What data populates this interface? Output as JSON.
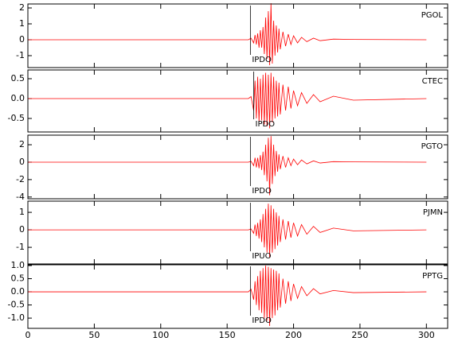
{
  "chart_data": [
    {
      "type": "line",
      "x": [
        0,
        166,
        168,
        170,
        171,
        172,
        173,
        174,
        175,
        176,
        177,
        178,
        179,
        180,
        181,
        182,
        183,
        184,
        185,
        186,
        187,
        188,
        189,
        190,
        192,
        194,
        196,
        198,
        200,
        203,
        206,
        210,
        215,
        220,
        230,
        245,
        300
      ],
      "series": [
        {
          "name": "PGOL",
          "color": "#ff0000",
          "values": [
            0,
            0,
            0.1,
            -0.2,
            0.3,
            -0.3,
            0.4,
            -0.5,
            0.6,
            -0.5,
            0.8,
            -0.9,
            1.4,
            -1.2,
            1.8,
            -1.6,
            2.3,
            -1.5,
            1.2,
            -1.0,
            0.9,
            -0.8,
            0.7,
            -0.6,
            0.5,
            -0.4,
            0.35,
            -0.3,
            0.25,
            -0.2,
            0.15,
            -0.12,
            0.1,
            -0.06,
            0.04,
            0.02,
            0
          ]
        }
      ],
      "annotations": [
        {
          "text": "IPDO",
          "x": 167.5
        }
      ],
      "xlim": [
        0,
        316
      ],
      "ylim": [
        -1.75,
        2.25
      ],
      "yticks": [
        -1,
        0,
        1,
        2
      ]
    },
    {
      "type": "line",
      "x": [
        0,
        166,
        168,
        170,
        171,
        172,
        173,
        174,
        175,
        176,
        177,
        178,
        179,
        180,
        181,
        182,
        183,
        184,
        185,
        186,
        187,
        188,
        189,
        190,
        192,
        194,
        196,
        198,
        200,
        203,
        206,
        210,
        215,
        220,
        230,
        245,
        300
      ],
      "series": [
        {
          "name": "CTEC",
          "color": "#ff0000",
          "values": [
            0,
            0,
            0.05,
            -0.3,
            0.45,
            -0.5,
            0.55,
            -0.6,
            0.5,
            -0.55,
            0.6,
            -0.65,
            0.65,
            -0.7,
            0.6,
            -0.75,
            0.65,
            -0.6,
            0.55,
            -0.5,
            0.45,
            -0.45,
            0.4,
            -0.4,
            0.35,
            -0.3,
            0.3,
            -0.25,
            0.2,
            -0.18,
            0.15,
            -0.12,
            0.1,
            -0.08,
            0.06,
            -0.04,
            0
          ]
        }
      ],
      "annotations": [
        {
          "text": "IPDO",
          "x": 170
        }
      ],
      "xlim": [
        0,
        316
      ],
      "ylim": [
        -0.84,
        0.72
      ],
      "yticks": [
        -0.5,
        {
          "value": 0,
          "label": "0.0"
        },
        0.5
      ]
    },
    {
      "type": "line",
      "x": [
        0,
        166,
        168,
        170,
        171,
        172,
        173,
        174,
        175,
        176,
        177,
        178,
        179,
        180,
        181,
        182,
        183,
        184,
        185,
        186,
        187,
        188,
        189,
        190,
        192,
        194,
        196,
        198,
        200,
        203,
        206,
        210,
        215,
        220,
        230,
        245,
        300
      ],
      "series": [
        {
          "name": "PGTO",
          "color": "#ff0000",
          "values": [
            0,
            0,
            0.1,
            -0.4,
            0.5,
            -0.6,
            0.5,
            -0.7,
            0.8,
            -0.9,
            1.2,
            -1.5,
            2.0,
            -2.2,
            2.8,
            -3.8,
            3.0,
            -2.5,
            2.0,
            -1.6,
            1.3,
            -1.1,
            0.9,
            -0.8,
            0.7,
            -0.6,
            0.5,
            -0.4,
            0.35,
            -0.3,
            0.25,
            -0.2,
            0.15,
            -0.1,
            0.06,
            0.03,
            0
          ]
        }
      ],
      "annotations": [
        {
          "text": "IPDO",
          "x": 167.5
        }
      ],
      "xlim": [
        0,
        316
      ],
      "ylim": [
        -4.2,
        3.1
      ],
      "yticks": [
        -4,
        -2,
        0,
        2
      ]
    },
    {
      "type": "line",
      "x": [
        0,
        166,
        168,
        170,
        171,
        172,
        173,
        174,
        175,
        176,
        177,
        178,
        179,
        180,
        181,
        182,
        183,
        184,
        185,
        186,
        187,
        188,
        189,
        190,
        192,
        194,
        196,
        198,
        200,
        203,
        206,
        210,
        215,
        220,
        230,
        245,
        300
      ],
      "series": [
        {
          "name": "PJMN",
          "color": "#ff0000",
          "values": [
            0,
            0,
            0.05,
            -0.2,
            0.3,
            -0.35,
            0.4,
            -0.5,
            0.6,
            -0.7,
            0.9,
            -1.0,
            1.2,
            -1.3,
            1.5,
            -1.6,
            1.4,
            -1.3,
            1.2,
            -1.1,
            1.0,
            -0.9,
            0.8,
            -0.7,
            0.6,
            -0.55,
            0.5,
            -0.45,
            0.4,
            -0.35,
            0.3,
            -0.25,
            0.2,
            -0.15,
            0.1,
            -0.06,
            0
          ]
        }
      ],
      "annotations": [
        {
          "text": "IPUO",
          "x": 167.5
        }
      ],
      "xlim": [
        0,
        316
      ],
      "ylim": [
        -1.95,
        1.64
      ],
      "yticks": [
        -1,
        0,
        1
      ]
    },
    {
      "type": "line",
      "x": [
        0,
        166,
        168,
        170,
        171,
        172,
        173,
        174,
        175,
        176,
        177,
        178,
        179,
        180,
        181,
        182,
        183,
        184,
        185,
        186,
        187,
        188,
        189,
        190,
        192,
        194,
        196,
        198,
        200,
        203,
        206,
        210,
        215,
        220,
        230,
        245,
        300
      ],
      "series": [
        {
          "name": "PPTG",
          "color": "#ff0000",
          "values": [
            0,
            0,
            0.1,
            -0.3,
            0.4,
            -0.5,
            0.6,
            -0.7,
            0.8,
            -0.8,
            0.9,
            -1.0,
            1.0,
            -1.1,
            0.95,
            -1.3,
            0.9,
            -1.0,
            0.85,
            -0.9,
            0.8,
            -0.7,
            0.7,
            -0.6,
            0.5,
            -0.45,
            0.4,
            -0.35,
            0.3,
            -0.25,
            0.2,
            -0.15,
            0.12,
            -0.08,
            0.05,
            -0.03,
            0
          ]
        }
      ],
      "annotations": [
        {
          "text": "IPDO",
          "x": 167.5
        }
      ],
      "xlim": [
        0,
        316
      ],
      "ylim": [
        -1.39,
        1.03
      ],
      "yticks": [
        {
          "value": -1,
          "label": "-1.0"
        },
        -0.5,
        {
          "value": 0,
          "label": "0.0"
        },
        0.5,
        {
          "value": 1,
          "label": "1.0"
        }
      ],
      "xticks": [
        0,
        50,
        100,
        150,
        200,
        250,
        300
      ]
    }
  ]
}
